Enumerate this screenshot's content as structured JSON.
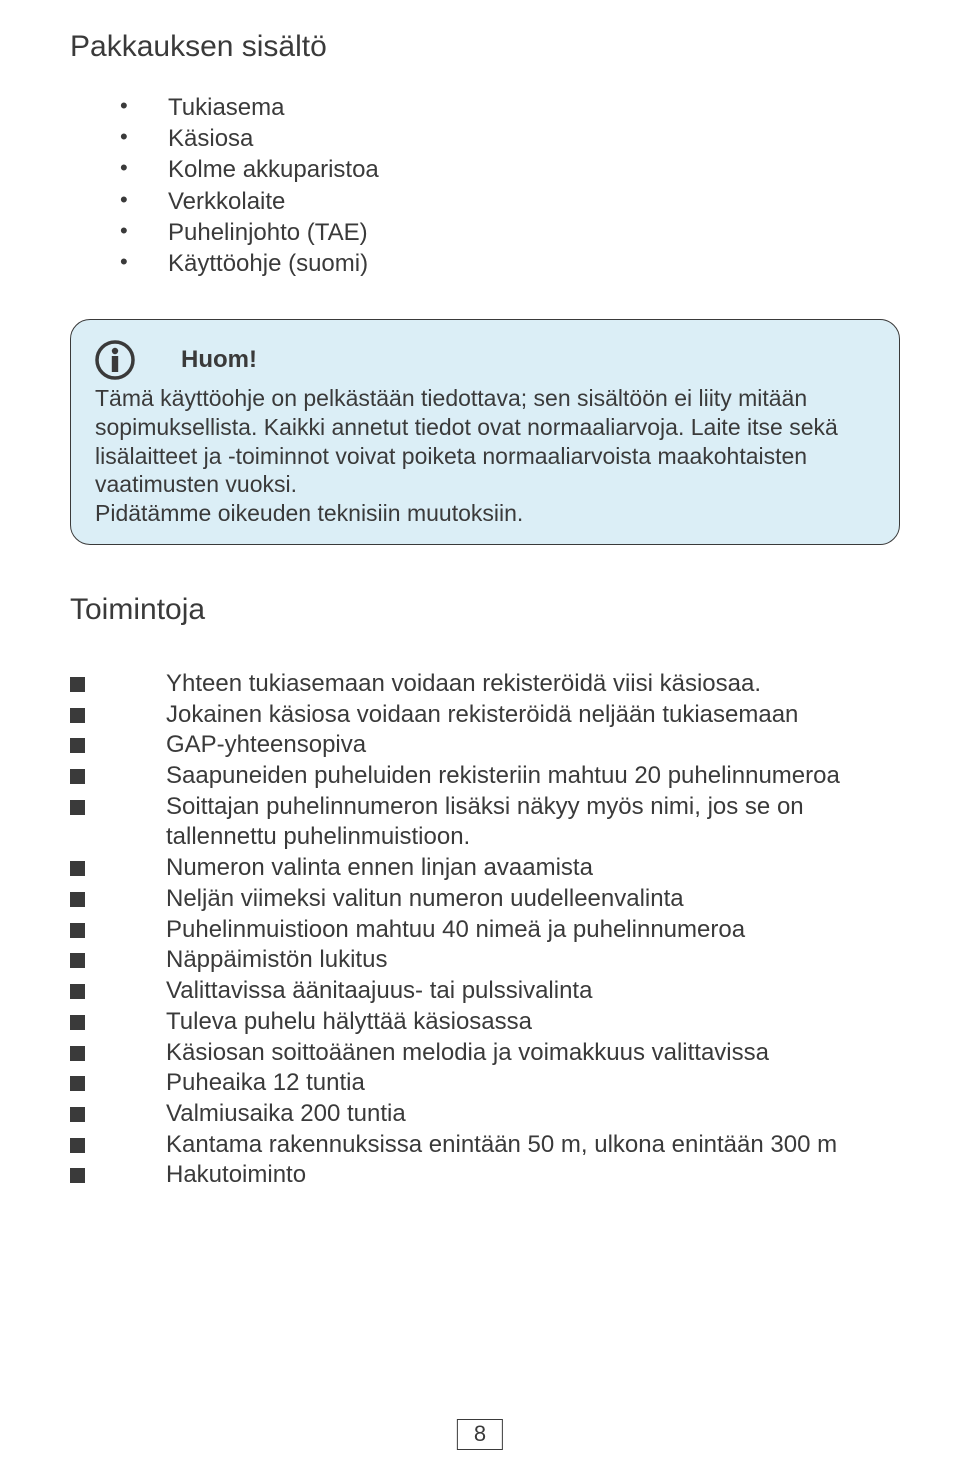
{
  "section1": {
    "title": "Pakkauksen sisältö",
    "items": [
      "Tukiasema",
      "Käsiosa",
      "Kolme akkuparistoa",
      "Verkkolaite",
      "Puhelinjohto (TAE)",
      "Käyttöohje (suomi)"
    ]
  },
  "info_box": {
    "title": "Huom!",
    "body": "Tämä käyttöohje on pelkästään tiedottava; sen sisältöön ei liity mitään sopimuksellista. Kaikki annetut tiedot ovat normaaliarvoja. Laite itse sekä lisälaitteet ja -toiminnot voivat poiketa normaaliarvoista maakohtaisten vaatimusten vuoksi.\nPidätämme oikeuden teknisiin muutoksiin.",
    "icon_name": "info-icon",
    "background_color": "#dbeef6",
    "border_color": "#3a3a3a",
    "border_radius": 20
  },
  "section2": {
    "title": "Toimintoja",
    "items": [
      "Yhteen tukiasemaan voidaan rekisteröidä viisi käsiosaa.",
      "Jokainen käsiosa voidaan rekisteröidä neljään tukiasemaan",
      "GAP-yhteensopiva",
      "Saapuneiden puheluiden rekisteriin mahtuu 20 puhelinnumeroa",
      "Soittajan puhelinnumeron lisäksi näkyy myös nimi, jos se on tallennettu puhelinmuistioon.",
      "Numeron valinta ennen linjan avaamista",
      "Neljän viimeksi valitun numeron uudelleenvalinta",
      "Puhelinmuistioon mahtuu 40 nimeä ja puhelinnumeroa",
      "Näppäimistön lukitus",
      "Valittavissa äänitaajuus- tai pulssivalinta",
      "Tuleva puhelu hälyttää käsiosassa",
      "Käsiosan soittoäänen melodia ja voimakkuus valittavissa",
      "Puheaika 12 tuntia",
      "Valmiusaika 200 tuntia",
      "Kantama rakennuksissa enintään 50 m, ulkona enintään 300 m",
      "Hakutoiminto"
    ]
  },
  "page_number": "8",
  "colors": {
    "text": "#3a3a3a",
    "background": "#ffffff",
    "box_bg": "#dbeef6"
  },
  "typography": {
    "title_fontsize": 30,
    "body_fontsize": 24,
    "info_fontsize": 23,
    "font_family": "Arial"
  }
}
